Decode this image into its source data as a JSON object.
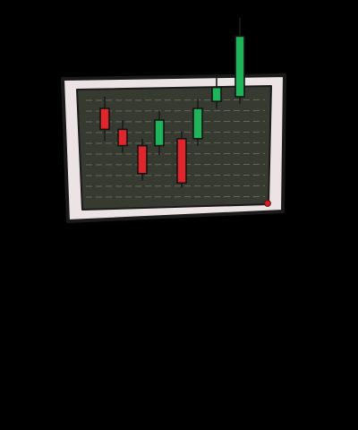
{
  "illustration": {
    "subject": "candlestick-chart-monitor",
    "colors": {
      "background": "#000000",
      "frame": "#ece4e4",
      "frame_outline": "#1a1a1a",
      "screen": "#363a31",
      "grid": "#6c7060",
      "bullish": "#1fb35a",
      "bearish": "#e0262a",
      "indicator_light": "#d01f25"
    }
  },
  "chart_data": {
    "type": "candlestick",
    "candles": [
      {
        "open": 52,
        "close": 70,
        "high": 80,
        "low": 42,
        "direction": "down"
      },
      {
        "open": 38,
        "close": 52,
        "high": 60,
        "low": 32,
        "direction": "down"
      },
      {
        "open": 14,
        "close": 38,
        "high": 44,
        "low": 8,
        "direction": "down"
      },
      {
        "open": 38,
        "close": 60,
        "high": 68,
        "low": 30,
        "direction": "up"
      },
      {
        "open": 6,
        "close": 44,
        "high": 50,
        "low": 2,
        "direction": "down"
      },
      {
        "open": 44,
        "close": 70,
        "high": 78,
        "low": 38,
        "direction": "up"
      },
      {
        "open": 76,
        "close": 88,
        "high": 96,
        "low": 70,
        "direction": "up"
      },
      {
        "open": 80,
        "close": 132,
        "high": 148,
        "low": 74,
        "direction": "up"
      }
    ],
    "grid": true
  }
}
